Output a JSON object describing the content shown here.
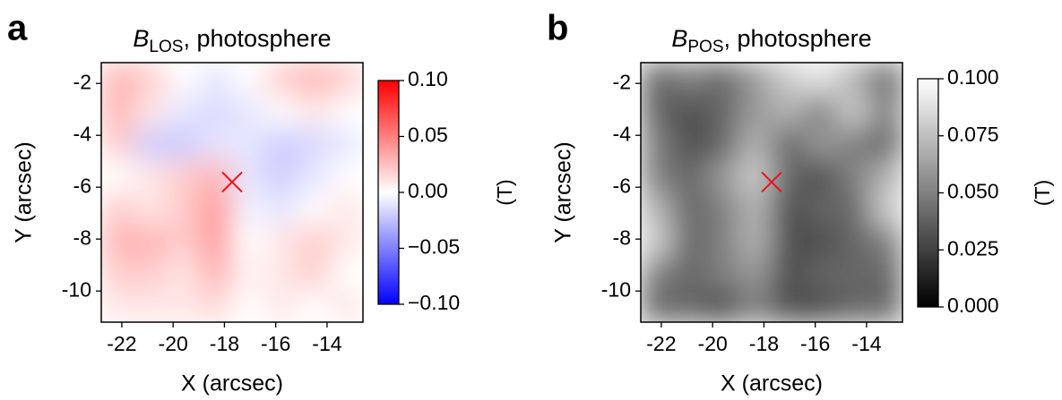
{
  "chart_data": [
    {
      "type": "heatmap",
      "panel_label": "a",
      "title_symbol": "B",
      "title_subscript": "LOS",
      "title_rest": ", photosphere",
      "xlabel": "X (arcsec)",
      "ylabel": "Y (arcsec)",
      "xlim": [
        -22.8,
        -12.6
      ],
      "ylim": [
        -11.2,
        -1.2
      ],
      "xticks": [
        -22,
        -20,
        -18,
        -16,
        -14
      ],
      "yticks": [
        -2,
        -4,
        -6,
        -8,
        -10
      ],
      "colormap": "bwr",
      "clim": [
        -0.1,
        0.1
      ],
      "cbar_ticks": [
        {
          "value": 0.1,
          "label": "0.10"
        },
        {
          "value": 0.05,
          "label": "0.05"
        },
        {
          "value": 0,
          "label": "0.00"
        },
        {
          "value": -0.05,
          "label": "−0.05"
        },
        {
          "value": -0.1,
          "label": "−0.10"
        }
      ],
      "cbar_label": "(T)",
      "marker": {
        "x": -17.7,
        "y": -5.8,
        "color": "#e8141c"
      },
      "z": [
        [
          0.03,
          0.02,
          0.0,
          -0.01,
          0.0,
          0.02,
          0.03,
          0.02
        ],
        [
          0.03,
          0.01,
          -0.01,
          -0.015,
          -0.01,
          0.0,
          0.01,
          0.0
        ],
        [
          0.02,
          -0.02,
          -0.02,
          -0.01,
          -0.01,
          -0.02,
          -0.015,
          -0.01
        ],
        [
          0.0,
          0.01,
          0.02,
          0.03,
          -0.01,
          -0.02,
          -0.01,
          0.0
        ],
        [
          0.02,
          0.01,
          0.02,
          0.04,
          -0.005,
          -0.01,
          0.0,
          0.01
        ],
        [
          0.03,
          0.03,
          0.02,
          0.04,
          0.0,
          0.01,
          0.02,
          0.01
        ],
        [
          0.02,
          0.02,
          0.01,
          0.03,
          0.005,
          0.01,
          0.02,
          0.0
        ],
        [
          0.01,
          0.01,
          0.01,
          0.015,
          0.0,
          0.01,
          0.0,
          0.01
        ]
      ]
    },
    {
      "type": "heatmap",
      "panel_label": "b",
      "title_symbol": "B",
      "title_subscript": "POS",
      "title_rest": ", photosphere",
      "xlabel": "X (arcsec)",
      "ylabel": "Y (arcsec)",
      "xlim": [
        -22.8,
        -12.6
      ],
      "ylim": [
        -11.2,
        -1.2
      ],
      "xticks": [
        -22,
        -20,
        -18,
        -16,
        -14
      ],
      "yticks": [
        -2,
        -4,
        -6,
        -8,
        -10
      ],
      "colormap": "gray",
      "clim": [
        0,
        0.1
      ],
      "cbar_ticks": [
        {
          "value": 0.1,
          "label": "0.100"
        },
        {
          "value": 0.075,
          "label": "0.075"
        },
        {
          "value": 0.05,
          "label": "0.050"
        },
        {
          "value": 0.025,
          "label": "0.025"
        },
        {
          "value": 0,
          "label": "0.000"
        }
      ],
      "cbar_label": "(T)",
      "marker": {
        "x": -17.7,
        "y": -5.8,
        "color": "#e8141c"
      },
      "z": [
        [
          0.04,
          0.05,
          0.04,
          0.06,
          0.08,
          0.09,
          0.07,
          0.04
        ],
        [
          0.04,
          0.03,
          0.04,
          0.06,
          0.07,
          0.05,
          0.08,
          0.05
        ],
        [
          0.05,
          0.03,
          0.04,
          0.07,
          0.04,
          0.06,
          0.05,
          0.04
        ],
        [
          0.05,
          0.04,
          0.06,
          0.08,
          0.04,
          0.03,
          0.05,
          0.07
        ],
        [
          0.07,
          0.04,
          0.05,
          0.07,
          0.03,
          0.04,
          0.04,
          0.08
        ],
        [
          0.08,
          0.04,
          0.05,
          0.07,
          0.03,
          0.03,
          0.04,
          0.05
        ],
        [
          0.05,
          0.04,
          0.05,
          0.06,
          0.03,
          0.04,
          0.04,
          0.04
        ],
        [
          0.04,
          0.04,
          0.03,
          0.05,
          0.03,
          0.03,
          0.04,
          0.04
        ]
      ]
    }
  ]
}
